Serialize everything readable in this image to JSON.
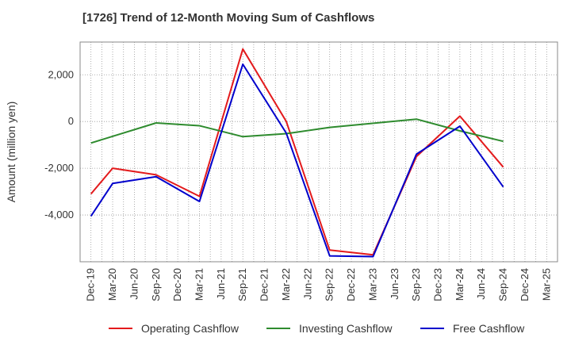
{
  "chart_data": {
    "type": "line",
    "title": "[1726]  Trend of 12-Month Moving Sum of Cashflows",
    "xlabel": "",
    "ylabel": "Amount (million yen)",
    "categories": [
      "Dec-19",
      "Mar-20",
      "Jun-20",
      "Sep-20",
      "Dec-20",
      "Mar-21",
      "Jun-21",
      "Sep-21",
      "Dec-21",
      "Mar-22",
      "Jun-22",
      "Sep-22",
      "Dec-22",
      "Mar-23",
      "Jun-23",
      "Sep-23",
      "Dec-23",
      "Mar-24",
      "Jun-24",
      "Sep-24",
      "Dec-24",
      "Mar-25"
    ],
    "ylim": [
      -6000,
      3400
    ],
    "yticks": [
      -4000,
      -2000,
      0,
      2000
    ],
    "ytick_labels": [
      "-4,000",
      "-2,000",
      "0",
      "2,000"
    ],
    "grid": true,
    "legend_position": "bottom",
    "series": [
      {
        "name": "Operating Cashflow",
        "color": "#e31a1c",
        "values": [
          -3100,
          -2000,
          null,
          -2280,
          null,
          -3200,
          null,
          3100,
          null,
          0,
          null,
          -5500,
          null,
          -5700,
          null,
          -1500,
          null,
          230,
          null,
          -1950,
          null,
          null
        ]
      },
      {
        "name": "Investing Cashflow",
        "color": "#2e8b2e",
        "values": [
          -920,
          null,
          null,
          -60,
          null,
          -180,
          null,
          -650,
          null,
          -520,
          null,
          -250,
          null,
          null,
          null,
          100,
          null,
          -400,
          null,
          -850,
          null,
          null
        ]
      },
      {
        "name": "Free Cashflow",
        "color": "#0000cc",
        "values": [
          -4050,
          -2650,
          null,
          -2360,
          null,
          -3420,
          null,
          2450,
          null,
          -500,
          null,
          -5750,
          null,
          -5780,
          null,
          -1400,
          null,
          -200,
          null,
          -2800,
          null,
          null
        ]
      }
    ]
  }
}
